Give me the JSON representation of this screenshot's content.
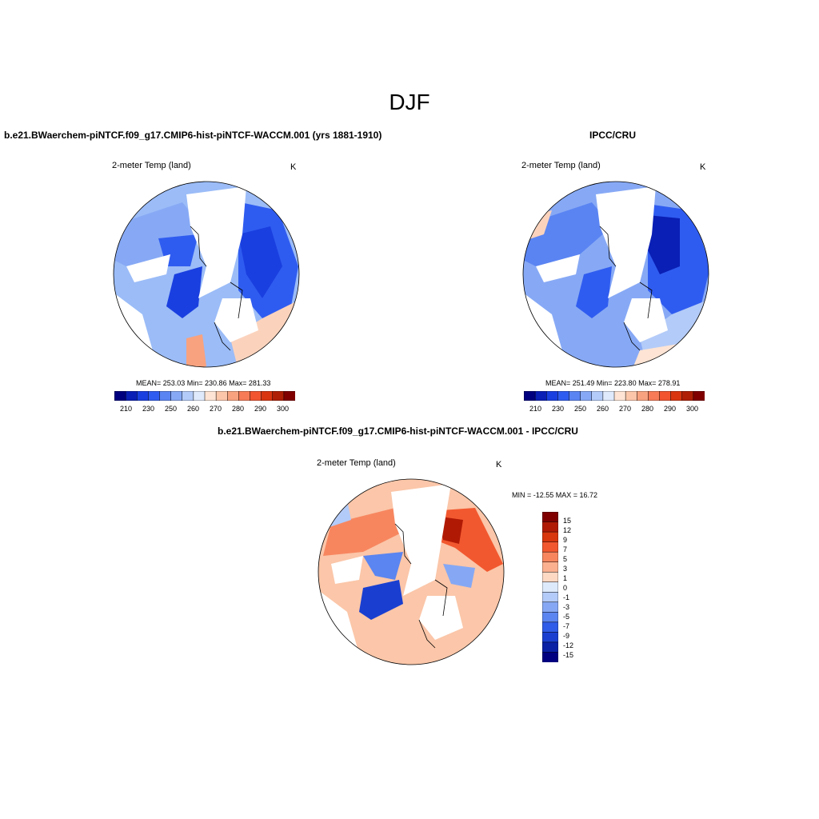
{
  "page": {
    "title": "DJF"
  },
  "panels": [
    {
      "title": "b.e21.BWaerchem-piNTCF.f09_g17.CMIP6-hist-piNTCF-WACCM.001 (yrs 1881-1910)",
      "variable": "2-meter Temp (land)",
      "units": "K",
      "stats": "MEAN= 253.03  Min= 230.86  Max= 281.33",
      "colorbar_ticks": [
        "210",
        "230",
        "250",
        "260",
        "270",
        "280",
        "290",
        "300"
      ]
    },
    {
      "title": "IPCC/CRU",
      "variable": "2-meter Temp (land)",
      "units": "K",
      "stats": "MEAN= 251.49  Min= 223.80  Max= 278.91",
      "colorbar_ticks": [
        "210",
        "230",
        "250",
        "260",
        "270",
        "280",
        "290",
        "300"
      ]
    },
    {
      "title": "b.e21.BWaerchem-piNTCF.f09_g17.CMIP6-hist-piNTCF-WACCM.001 - IPCC/CRU",
      "variable": "2-meter Temp (land)",
      "units": "K",
      "stats": "MIN = -12.55 MAX =  16.72",
      "colorbar_ticks": [
        "15",
        "12",
        "9",
        "7",
        "5",
        "3",
        "1",
        "0",
        "-1",
        "-3",
        "-5",
        "-7",
        "-9",
        "-12",
        "-15"
      ]
    }
  ],
  "palettes": {
    "absolute": [
      "#00007f",
      "#0a1fb5",
      "#1a3fe0",
      "#2f5cf0",
      "#5a84f2",
      "#87a9f5",
      "#b3cbf8",
      "#dfeafc",
      "#fde4d4",
      "#fbc6a9",
      "#f8a27f",
      "#f67b56",
      "#f1542f",
      "#d9350f",
      "#ae1f06",
      "#800000"
    ],
    "difference": [
      "#800000",
      "#b01a05",
      "#d8360d",
      "#f2582f",
      "#f7865f",
      "#fbb08f",
      "#fdd9c4",
      "#ddeafc",
      "#b3cbf8",
      "#86a8f4",
      "#5b85f0",
      "#2f5ce8",
      "#1a3fd0",
      "#0a21a6",
      "#000080"
    ]
  }
}
